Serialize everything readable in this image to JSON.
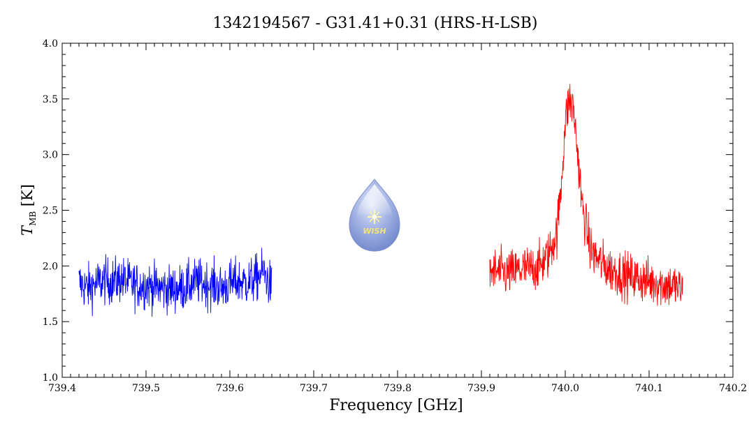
{
  "chart_data": {
    "type": "line",
    "title": "1342194567 - G31.41+0.31 (HRS-H-LSB)",
    "xlabel": "Frequency [GHz]",
    "ylabel_main": "T",
    "ylabel_sub": "MB",
    "ylabel_unit": " [K]",
    "xlim": [
      739.4,
      740.2
    ],
    "ylim": [
      1.0,
      4.0
    ],
    "x_ticks": [
      "739.4",
      "739.5",
      "739.6",
      "739.7",
      "739.8",
      "739.9",
      "740.0",
      "740.1",
      "740.2"
    ],
    "y_ticks": [
      "1.0",
      "1.5",
      "2.0",
      "2.5",
      "3.0",
      "3.5",
      "4.0"
    ],
    "grid": false,
    "logo": {
      "text": "WISH"
    },
    "series": [
      {
        "color": "#0000ff",
        "x": [
          739.42,
          739.43,
          739.44,
          739.45,
          739.46,
          739.47,
          739.48,
          739.49,
          739.5,
          739.51,
          739.52,
          739.53,
          739.54,
          739.55,
          739.56,
          739.57,
          739.58,
          739.59,
          739.6,
          739.61,
          739.62,
          739.63,
          739.64,
          739.65
        ],
        "y": [
          1.85,
          1.8,
          1.84,
          1.87,
          1.86,
          1.88,
          1.85,
          1.82,
          1.83,
          1.81,
          1.8,
          1.79,
          1.8,
          1.82,
          1.86,
          1.84,
          1.83,
          1.8,
          1.84,
          1.86,
          1.85,
          1.88,
          1.95,
          1.8
        ],
        "noise": 0.2
      },
      {
        "color": "#ff0000",
        "x": [
          739.91,
          739.92,
          739.93,
          739.94,
          739.95,
          739.96,
          739.97,
          739.98,
          739.99,
          739.995,
          740.0,
          740.005,
          740.01,
          740.015,
          740.02,
          740.025,
          740.03,
          740.04,
          740.05,
          740.06,
          740.07,
          740.08,
          740.09,
          740.1,
          740.11,
          740.12,
          740.13,
          740.14
        ],
        "y": [
          1.95,
          1.95,
          1.93,
          1.95,
          1.97,
          1.98,
          2.0,
          2.1,
          2.3,
          2.7,
          3.3,
          3.5,
          3.4,
          3.0,
          2.55,
          2.35,
          2.15,
          2.05,
          1.98,
          1.95,
          1.92,
          1.9,
          1.88,
          1.86,
          1.85,
          1.83,
          1.82,
          1.78
        ],
        "noise": 0.2
      }
    ]
  }
}
